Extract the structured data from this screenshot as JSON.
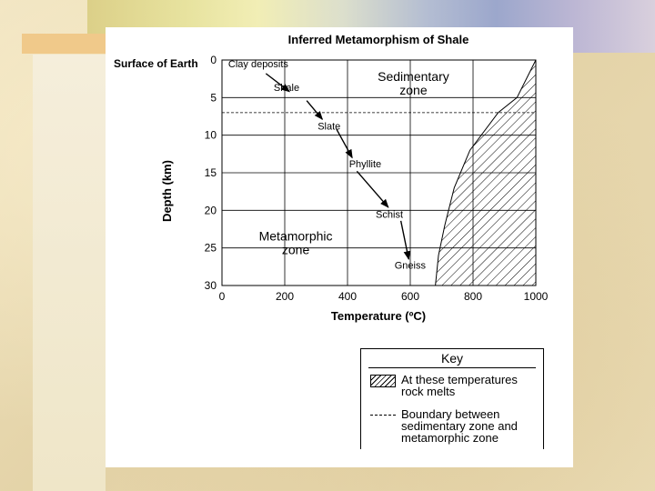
{
  "slide": {
    "title": "Inferred Metamorphism of Shale",
    "surface_label": "Surface of Earth"
  },
  "chart_data": {
    "type": "diagram",
    "title": "Inferred Metamorphism of Shale",
    "xlabel": "Temperature (ºC)",
    "ylabel": "Depth (km)",
    "xlim": [
      0,
      1000
    ],
    "ylim": [
      0,
      30
    ],
    "x_ticks": [
      0,
      200,
      400,
      600,
      800,
      1000
    ],
    "y_ticks": [
      0,
      5,
      10,
      15,
      20,
      25,
      30
    ],
    "zone_boundary_depth_km": 7,
    "melt_curve": [
      {
        "t": 1000,
        "d": 0
      },
      {
        "t": 940,
        "d": 5
      },
      {
        "t": 880,
        "d": 7
      },
      {
        "t": 790,
        "d": 12
      },
      {
        "t": 740,
        "d": 17
      },
      {
        "t": 710,
        "d": 22
      },
      {
        "t": 690,
        "d": 26
      },
      {
        "t": 680,
        "d": 30
      }
    ],
    "rocks": [
      {
        "name": "Clay deposits",
        "t": 20,
        "d": 0.5
      },
      {
        "name": "Shale",
        "t": 165,
        "d": 3.6
      },
      {
        "name": "Slate",
        "t": 305,
        "d": 8.8
      },
      {
        "name": "Phyllite",
        "t": 405,
        "d": 13.8
      },
      {
        "name": "Schist",
        "t": 490,
        "d": 20.5
      },
      {
        "name": "Gneiss",
        "t": 550,
        "d": 27.3
      }
    ],
    "arrows": [
      {
        "from_t": 140,
        "from_d": 1.8,
        "to_t": 215,
        "to_d": 4.2
      },
      {
        "from_t": 270,
        "from_d": 5.4,
        "to_t": 320,
        "to_d": 7.9
      },
      {
        "from_t": 365,
        "from_d": 9.2,
        "to_t": 415,
        "to_d": 13.0
      },
      {
        "from_t": 430,
        "from_d": 14.8,
        "to_t": 530,
        "to_d": 19.6
      },
      {
        "from_t": 570,
        "from_d": 21.4,
        "to_t": 595,
        "to_d": 26.5
      }
    ],
    "zones": [
      {
        "name_lines": [
          "Sedimentary",
          "zone"
        ],
        "t": 610,
        "d": 2.2
      },
      {
        "name_lines": [
          "Metamorphic",
          "zone"
        ],
        "t": 235,
        "d": 23.4
      }
    ]
  },
  "key": {
    "title": "Key",
    "melt_lines": [
      "At these temperatures",
      "rock melts"
    ],
    "boundary_lines": [
      "Boundary between",
      "sedimentary zone and",
      "metamorphic zone"
    ]
  }
}
